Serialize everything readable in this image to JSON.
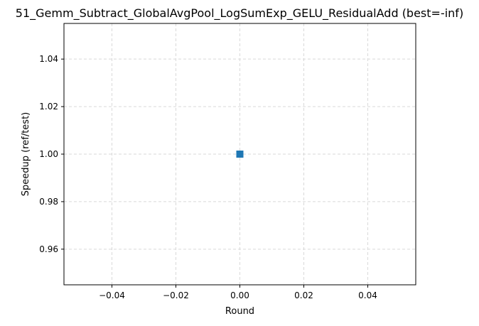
{
  "chart_data": {
    "type": "line",
    "title": "51_Gemm_Subtract_GlobalAvgPool_LogSumExp_GELU_ResidualAdd (best=-inf)",
    "xlabel": "Round",
    "ylabel": "Speedup (ref/test)",
    "xlim": [
      -0.055,
      0.055
    ],
    "ylim": [
      0.945,
      1.055
    ],
    "x_ticks": [
      -0.04,
      -0.02,
      0.0,
      0.02,
      0.04
    ],
    "x_tick_labels": [
      "−0.04",
      "−0.02",
      "0.00",
      "0.02",
      "0.04"
    ],
    "y_ticks": [
      0.96,
      0.98,
      1.0,
      1.02,
      1.04
    ],
    "y_tick_labels": [
      "0.96",
      "0.98",
      "1.00",
      "1.02",
      "1.04"
    ],
    "grid": true,
    "grid_style": "dashed",
    "series": [
      {
        "x": [
          0
        ],
        "y": [
          1.0
        ],
        "marker": "square",
        "color": "#1f77b4"
      }
    ]
  }
}
